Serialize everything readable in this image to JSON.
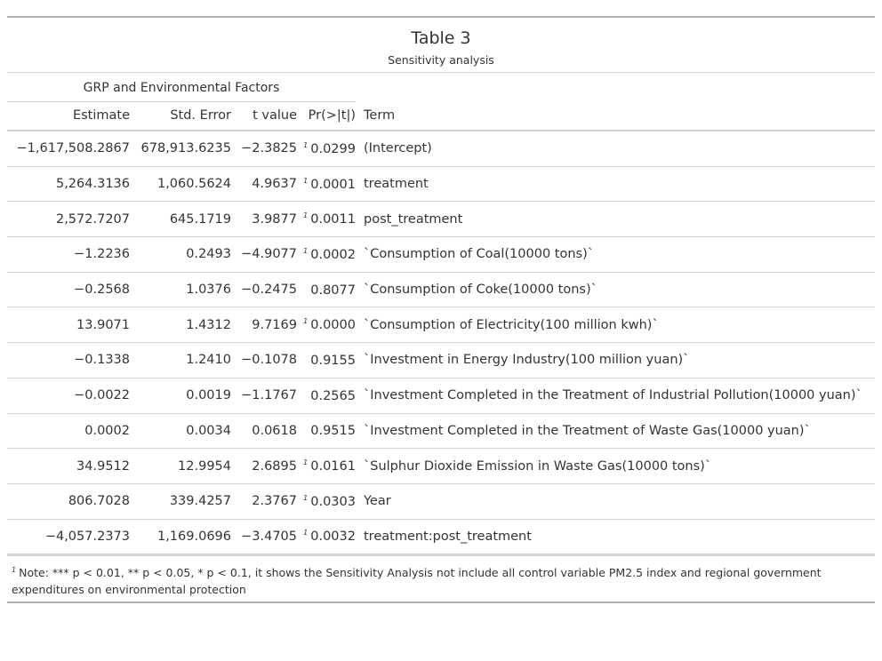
{
  "table": {
    "title": "Table 3",
    "subtitle": "Sensitivity analysis",
    "spanner": "GRP and Environmental Factors",
    "columns": [
      "Estimate",
      "Std. Error",
      "t value",
      "Pr(>|t|)",
      "Term"
    ],
    "footnote_mark": "1",
    "rows": [
      {
        "estimate": "−1,617,508.2867",
        "std_error": "678,913.6235",
        "t_value": "−2.3825",
        "mark": "1",
        "p_value": "0.0299",
        "term": "(Intercept)"
      },
      {
        "estimate": "5,264.3136",
        "std_error": "1,060.5624",
        "t_value": "4.9637",
        "mark": "1",
        "p_value": "0.0001",
        "term": "treatment"
      },
      {
        "estimate": "2,572.7207",
        "std_error": "645.1719",
        "t_value": "3.9877",
        "mark": "1",
        "p_value": "0.0011",
        "term": "post_treatment"
      },
      {
        "estimate": "−1.2236",
        "std_error": "0.2493",
        "t_value": "−4.9077",
        "mark": "1",
        "p_value": "0.0002",
        "term": "`Consumption of Coal(10000 tons)`"
      },
      {
        "estimate": "−0.2568",
        "std_error": "1.0376",
        "t_value": "−0.2475",
        "mark": "",
        "p_value": "0.8077",
        "term": "`Consumption of Coke(10000 tons)`"
      },
      {
        "estimate": "13.9071",
        "std_error": "1.4312",
        "t_value": "9.7169",
        "mark": "1",
        "p_value": "0.0000",
        "term": "`Consumption of Electricity(100 million kwh)`"
      },
      {
        "estimate": "−0.1338",
        "std_error": "1.2410",
        "t_value": "−0.1078",
        "mark": "",
        "p_value": "0.9155",
        "term": "`Investment in Energy Industry(100 million yuan)`"
      },
      {
        "estimate": "−0.0022",
        "std_error": "0.0019",
        "t_value": "−1.1767",
        "mark": "",
        "p_value": "0.2565",
        "term": "`Investment Completed in the Treatment of Industrial Pollution(10000 yuan)`"
      },
      {
        "estimate": "0.0002",
        "std_error": "0.0034",
        "t_value": "0.0618",
        "mark": "",
        "p_value": "0.9515",
        "term": "`Investment Completed in the Treatment of Waste Gas(10000 yuan)`"
      },
      {
        "estimate": "34.9512",
        "std_error": "12.9954",
        "t_value": "2.6895",
        "mark": "1",
        "p_value": "0.0161",
        "term": "`Sulphur Dioxide Emission in Waste Gas(10000 tons)`"
      },
      {
        "estimate": "806.7028",
        "std_error": "339.4257",
        "t_value": "2.3767",
        "mark": "1",
        "p_value": "0.0303",
        "term": "Year"
      },
      {
        "estimate": "−4,057.2373",
        "std_error": "1,169.0696",
        "t_value": "−3.4705",
        "mark": "1",
        "p_value": "0.0032",
        "term": "treatment:post_treatment"
      }
    ],
    "note": "Note: *** p < 0.01, ** p < 0.05, * p < 0.1, it shows the Sensitivity Analysis not include all control variable PM2.5 index and regional government expenditures on environmental protection"
  }
}
